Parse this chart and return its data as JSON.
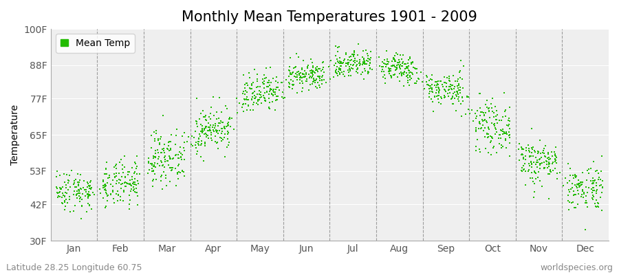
{
  "title": "Monthly Mean Temperatures 1901 - 2009",
  "ylabel": "Temperature",
  "footer_left": "Latitude 28.25 Longitude 60.75",
  "footer_right": "worldspecies.org",
  "legend_label": "Mean Temp",
  "ytick_labels": [
    "30F",
    "42F",
    "53F",
    "65F",
    "77F",
    "88F",
    "100F"
  ],
  "ytick_values": [
    30,
    42,
    53,
    65,
    77,
    88,
    100
  ],
  "ylim": [
    30,
    100
  ],
  "xlim": [
    0,
    12
  ],
  "months": [
    "Jan",
    "Feb",
    "Mar",
    "Apr",
    "May",
    "Jun",
    "Jul",
    "Aug",
    "Sep",
    "Oct",
    "Nov",
    "Dec"
  ],
  "dot_color": "#22bb00",
  "bg_color": "#efefef",
  "mean_temps_f": [
    46.5,
    48.5,
    57.5,
    67.0,
    78.5,
    84.5,
    88.5,
    87.0,
    80.0,
    68.0,
    56.0,
    47.5
  ],
  "std_temps_f": [
    3.5,
    4.0,
    4.5,
    4.0,
    3.5,
    2.5,
    2.5,
    2.5,
    3.0,
    4.0,
    4.0,
    4.0
  ],
  "n_years": 109,
  "title_fontsize": 15,
  "axis_fontsize": 10,
  "tick_fontsize": 10,
  "footer_fontsize": 9,
  "dot_size": 3,
  "jitter_x": 0.38
}
